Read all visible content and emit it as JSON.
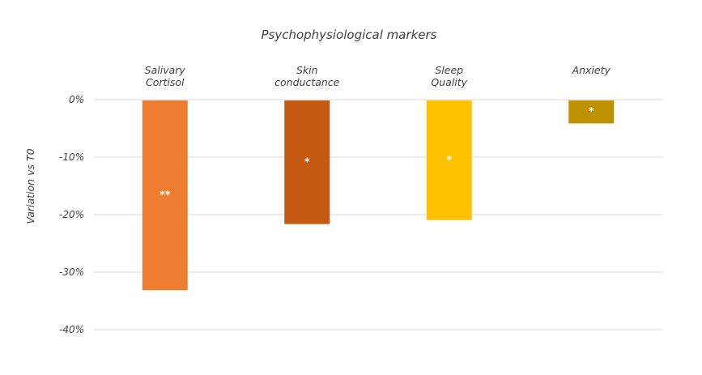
{
  "chart_data": {
    "type": "bar",
    "title": "Psychophysiological markers",
    "ylabel": "Variation vs T0",
    "xlabel": "",
    "categories": [
      [
        "Salivary",
        "Cortisol"
      ],
      [
        "Skin",
        "conductance"
      ],
      [
        "Sleep",
        "Quality"
      ],
      [
        "Anxiety"
      ]
    ],
    "values": [
      -33,
      -21.5,
      -20.8,
      -4
    ],
    "annotations": [
      "**",
      "*",
      "*",
      "*"
    ],
    "colors": [
      "#ED7D31",
      "#C55A11",
      "#FFC000",
      "#BF9000"
    ],
    "ylim": [
      -40,
      0
    ],
    "yticks": [
      0,
      -10,
      -20,
      -30,
      -40
    ],
    "ytick_labels": [
      "0%",
      "-10%",
      "-20%",
      "-30%",
      "-40%"
    ],
    "grid": true,
    "category_axis_position": "top"
  }
}
